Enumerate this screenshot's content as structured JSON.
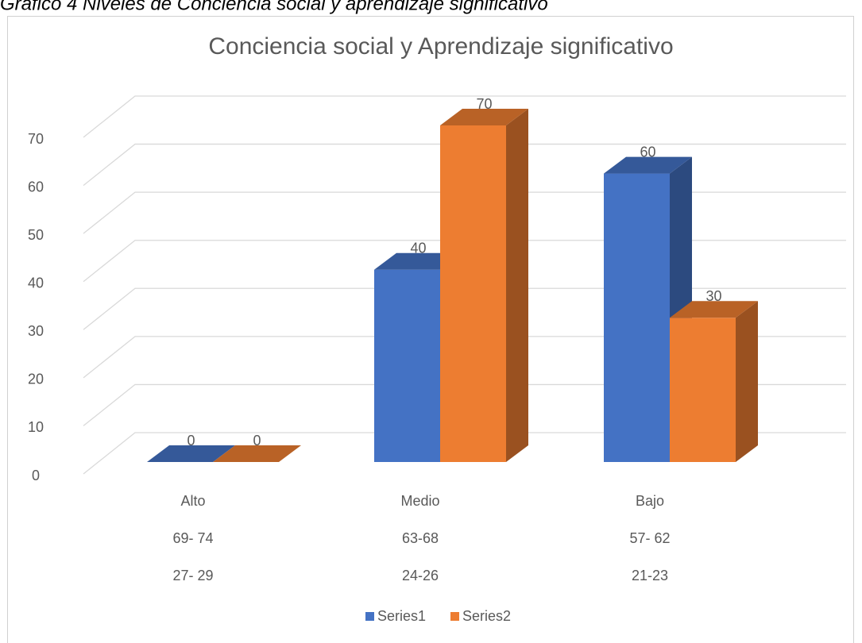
{
  "caption": "Gráfico 4  Niveles de Conciencia social y aprendizaje significativo",
  "chart_data": {
    "type": "bar3d",
    "title": "Conciencia social y Aprendizaje significativo",
    "categories": [
      [
        "Alto",
        "69- 74",
        "27- 29"
      ],
      [
        "Medio",
        "63-68",
        "24-26"
      ],
      [
        "Bajo",
        "57- 62",
        "21-23"
      ]
    ],
    "series": [
      {
        "name": "Series1",
        "color": "#4472c4",
        "values": [
          0,
          40,
          60
        ]
      },
      {
        "name": "Series2",
        "color": "#ed7d31",
        "values": [
          0,
          70,
          30
        ]
      }
    ],
    "ylim": [
      0,
      70
    ],
    "yticks": [
      0,
      10,
      20,
      30,
      40,
      50,
      60,
      70
    ],
    "grid": true,
    "legend": "bottom"
  }
}
